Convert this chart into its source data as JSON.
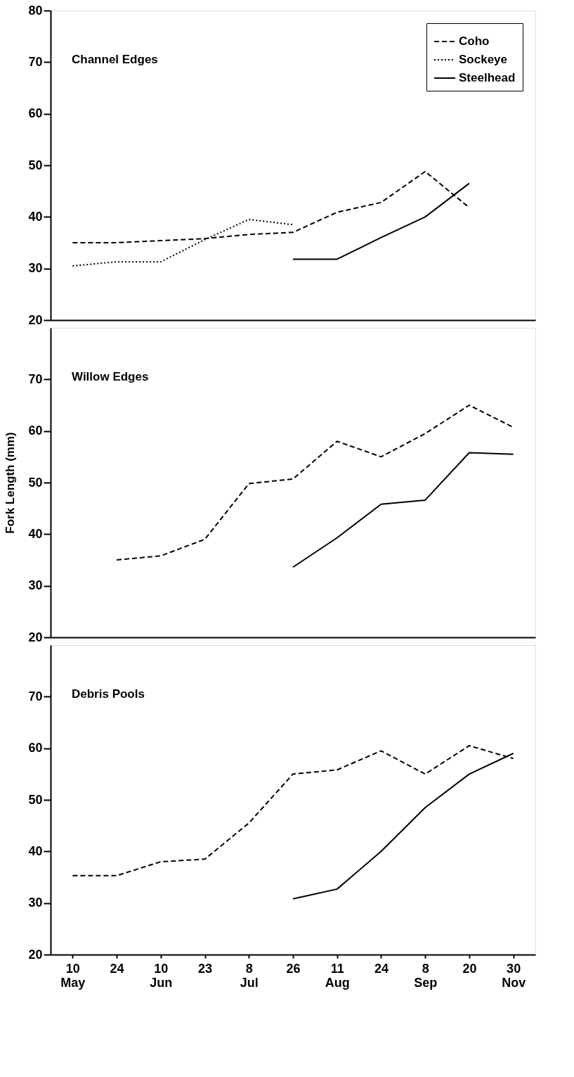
{
  "chart_data": [
    {
      "type": "line",
      "title": "Channel Edges",
      "ylim": [
        20,
        80
      ],
      "yticks": [
        20,
        30,
        40,
        50,
        60,
        70,
        80
      ],
      "grid": false,
      "legend": "top right",
      "tick_labels": "y",
      "marker": "none",
      "series": [
        {
          "name": "Coho",
          "color": "#000000",
          "line_style": "dashed",
          "values": [
            35,
            35,
            35.4,
            35.8,
            36.6,
            37,
            40.9,
            42.8,
            48.8,
            41.8,
            null
          ]
        },
        {
          "name": "Sockeye",
          "color": "#000000",
          "line_style": "dotted",
          "values": [
            30.5,
            31.3,
            31.3,
            35.6,
            39.5,
            38.5,
            null,
            null,
            null,
            null,
            null
          ]
        },
        {
          "name": "Steelhead",
          "color": "#000000",
          "line_style": "solid",
          "values": [
            null,
            null,
            null,
            null,
            null,
            31.8,
            31.8,
            36,
            40,
            46.5,
            null
          ]
        }
      ]
    },
    {
      "type": "line",
      "title": "Willow Edges",
      "ylabel": "Fork Length (mm)",
      "ylim": [
        20,
        80
      ],
      "yticks": [
        20,
        30,
        40,
        50,
        60,
        70
      ],
      "grid": false,
      "legend": false,
      "tick_labels": "y",
      "marker": "none",
      "series": [
        {
          "color": "#000000",
          "line_style": "dashed",
          "values": [
            null,
            35,
            35.8,
            39,
            49.8,
            50.7,
            58,
            55,
            59.5,
            65,
            60.7
          ]
        },
        {
          "color": "#000000",
          "line_style": "solid",
          "values": [
            null,
            null,
            null,
            null,
            null,
            33.6,
            39.3,
            45.8,
            46.6,
            55.8,
            55.5
          ]
        }
      ]
    },
    {
      "type": "line",
      "title": "Debris Pools",
      "categories": [
        "10\nMay",
        "24",
        "10\nJun",
        "23",
        "8\nJul",
        "26",
        "11\nAug",
        "24",
        "8\nSep",
        "20",
        "30\nNov"
      ],
      "ylim": [
        20,
        80
      ],
      "yticks": [
        20,
        30,
        40,
        50,
        60,
        70
      ],
      "grid": false,
      "legend": false,
      "marker": "none",
      "series": [
        {
          "color": "#000000",
          "line_style": "dashed",
          "values": [
            35.3,
            35.3,
            38,
            38.5,
            45.5,
            55,
            55.8,
            59.5,
            55,
            60.5,
            58
          ]
        },
        {
          "color": "#000000",
          "line_style": "solid",
          "values": [
            null,
            null,
            null,
            null,
            null,
            30.8,
            32.7,
            40,
            48.5,
            55,
            59
          ]
        }
      ]
    }
  ]
}
